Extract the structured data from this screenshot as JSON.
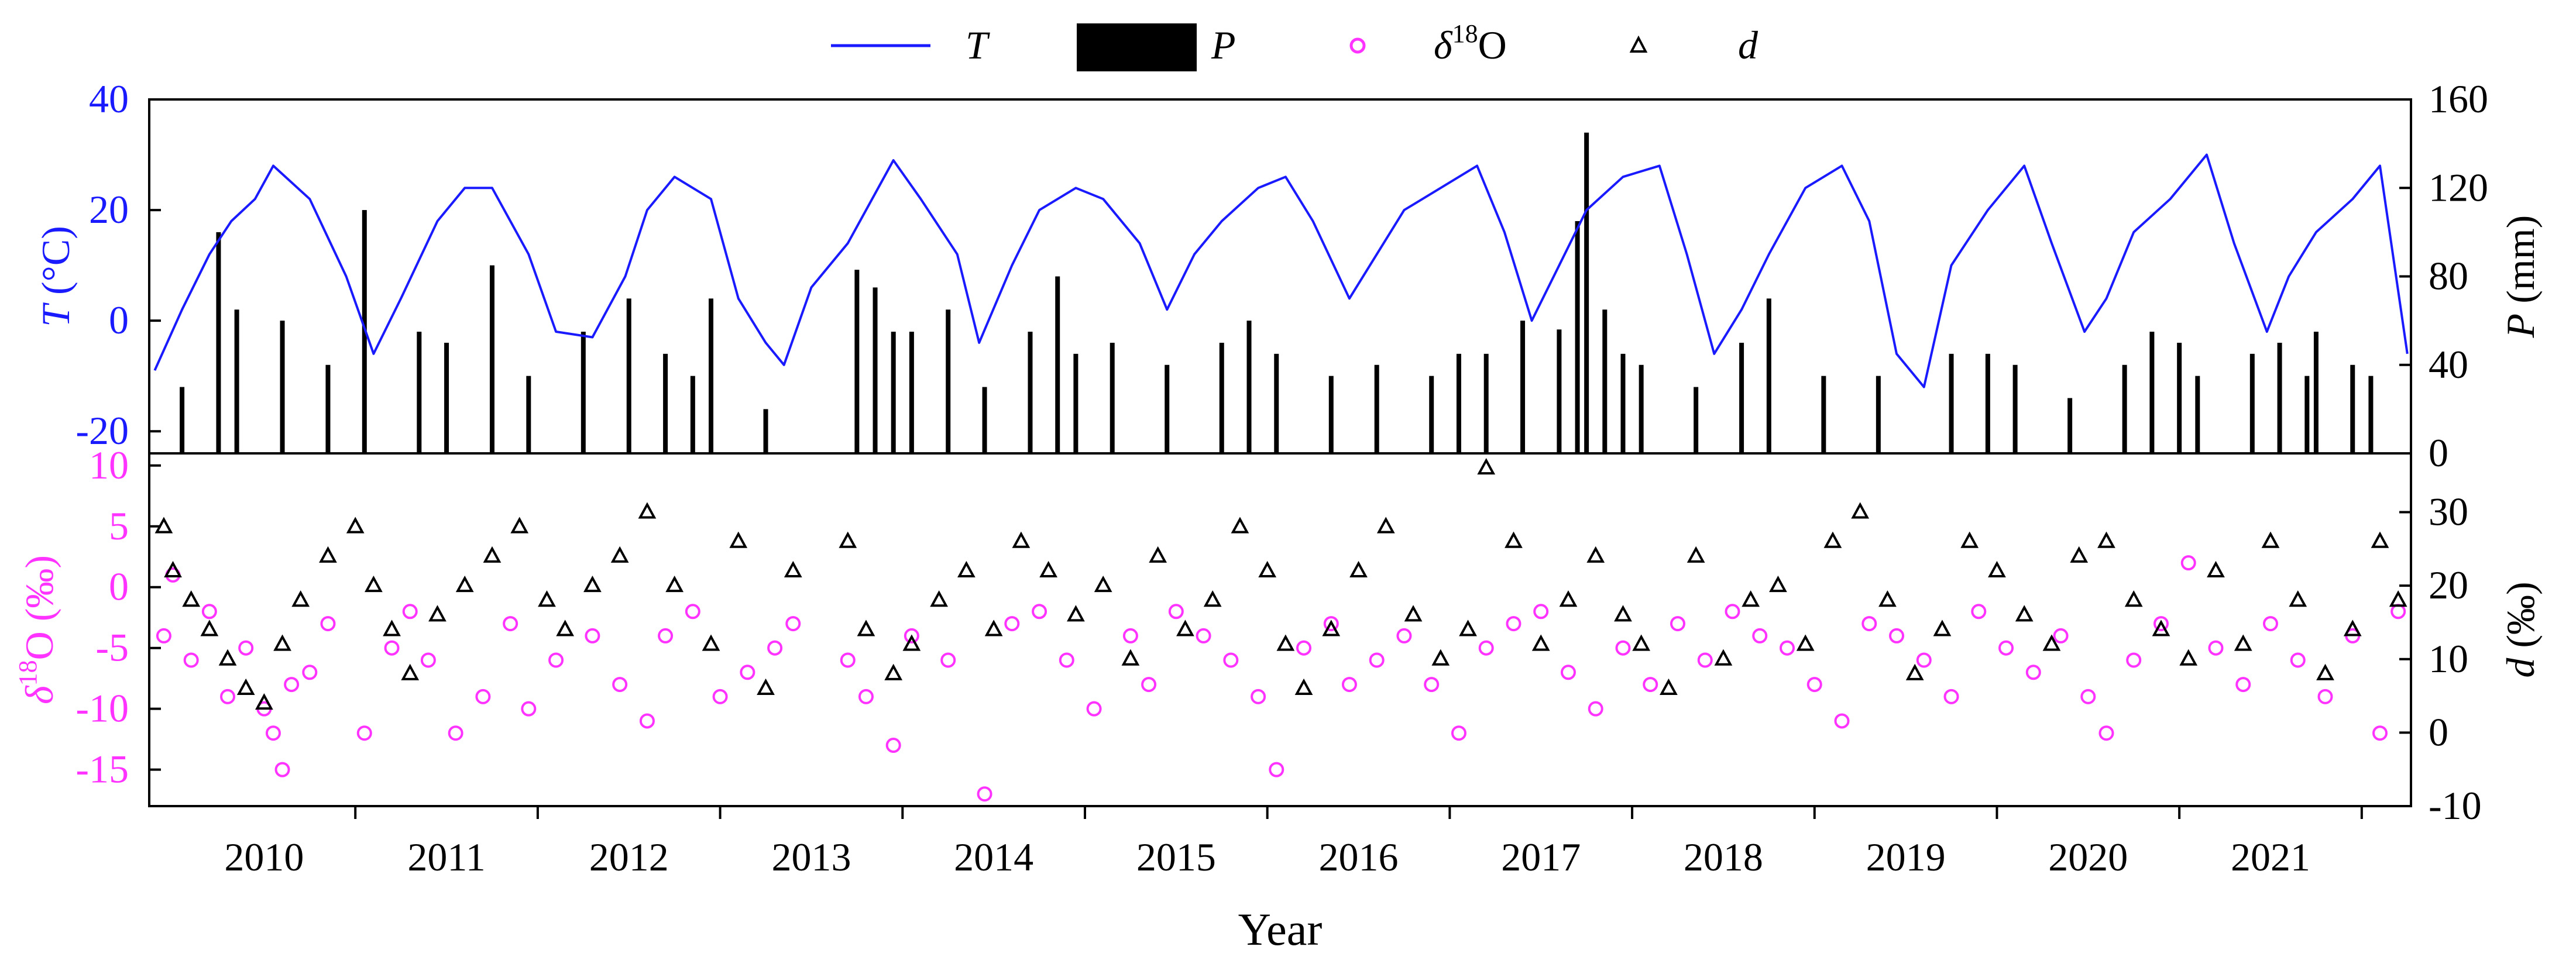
{
  "colors": {
    "temperature": "#1a1aff",
    "precipitation": "#000000",
    "d18o": "#ff33ff",
    "dexcess": "#000000",
    "axis": "#000000"
  },
  "legend": {
    "items": [
      {
        "key": "T",
        "label": "T",
        "marker": "line"
      },
      {
        "key": "P",
        "label": "P",
        "marker": "bar"
      },
      {
        "key": "d18O",
        "label_prefix": "δ",
        "label_sup": "18",
        "label_suffix": "O",
        "marker": "circle"
      },
      {
        "key": "d",
        "label": "d",
        "marker": "triangle"
      }
    ]
  },
  "chart_data": [
    {
      "panel": "top",
      "type": "line+bar",
      "x_range": [
        2009.37,
        2021.77
      ],
      "left_axis": {
        "label_var": "T",
        "label_unit": " (°C)",
        "ylim": [
          -24,
          40
        ],
        "ticks": [
          -20,
          0,
          20,
          40
        ]
      },
      "right_axis": {
        "label_var": "P",
        "label_unit": " (mm)",
        "ylim": [
          0,
          160
        ],
        "ticks": [
          0,
          40,
          80,
          120,
          160
        ]
      },
      "series": [
        {
          "name": "T",
          "type": "line",
          "description": "daily temperature, seasonal cycle",
          "x": [
            2009.4,
            2009.55,
            2009.7,
            2009.82,
            2009.95,
            2010.05,
            2010.25,
            2010.45,
            2010.6,
            2010.75,
            2010.95,
            2011.1,
            2011.25,
            2011.45,
            2011.6,
            2011.8,
            2011.98,
            2012.1,
            2012.25,
            2012.45,
            2012.6,
            2012.75,
            2012.85,
            2013.0,
            2013.2,
            2013.45,
            2013.6,
            2013.8,
            2013.92,
            2014.1,
            2014.25,
            2014.45,
            2014.6,
            2014.8,
            2014.95,
            2015.1,
            2015.25,
            2015.45,
            2015.6,
            2015.75,
            2015.95,
            2016.1,
            2016.25,
            2016.45,
            2016.65,
            2016.8,
            2016.95,
            2017.1,
            2017.25,
            2017.45,
            2017.65,
            2017.8,
            2017.95,
            2018.1,
            2018.25,
            2018.45,
            2018.65,
            2018.8,
            2018.95,
            2019.1,
            2019.25,
            2019.45,
            2019.65,
            2019.8,
            2019.98,
            2020.1,
            2020.25,
            2020.45,
            2020.65,
            2020.8,
            2020.98,
            2021.1,
            2021.25,
            2021.45,
            2021.6,
            2021.75
          ],
          "values": [
            -9,
            2,
            12,
            18,
            22,
            28,
            22,
            8,
            -6,
            4,
            18,
            24,
            24,
            12,
            -2,
            -3,
            8,
            20,
            26,
            22,
            4,
            -4,
            -8,
            6,
            14,
            29,
            22,
            12,
            -4,
            10,
            20,
            24,
            22,
            14,
            2,
            12,
            18,
            24,
            26,
            18,
            4,
            12,
            20,
            24,
            28,
            16,
            0,
            10,
            20,
            26,
            28,
            12,
            -6,
            2,
            12,
            24,
            28,
            18,
            -6,
            -12,
            10,
            20,
            28,
            14,
            -2,
            4,
            16,
            22,
            30,
            14,
            -2,
            8,
            16,
            22,
            28,
            -6
          ]
        },
        {
          "name": "P",
          "type": "bar",
          "description": "daily precipitation; notable spikes",
          "x": [
            2009.55,
            2009.75,
            2009.85,
            2010.1,
            2010.35,
            2010.55,
            2010.85,
            2011.0,
            2011.25,
            2011.45,
            2011.75,
            2012.0,
            2012.2,
            2012.35,
            2012.45,
            2012.75,
            2013.25,
            2013.35,
            2013.45,
            2013.55,
            2013.75,
            2013.95,
            2014.2,
            2014.35,
            2014.45,
            2014.65,
            2014.95,
            2015.25,
            2015.4,
            2015.55,
            2015.85,
            2016.1,
            2016.4,
            2016.55,
            2016.7,
            2016.9,
            2017.1,
            2017.2,
            2017.25,
            2017.35,
            2017.45,
            2017.55,
            2017.85,
            2018.1,
            2018.25,
            2018.55,
            2018.85,
            2019.25,
            2019.45,
            2019.6,
            2019.9,
            2020.2,
            2020.35,
            2020.5,
            2020.6,
            2020.9,
            2021.05,
            2021.2,
            2021.25,
            2021.45,
            2021.55
          ],
          "values": [
            30,
            100,
            65,
            60,
            40,
            110,
            55,
            50,
            85,
            35,
            55,
            70,
            45,
            35,
            70,
            20,
            83,
            75,
            55,
            55,
            65,
            30,
            55,
            80,
            45,
            50,
            40,
            50,
            60,
            45,
            35,
            40,
            35,
            45,
            45,
            60,
            56,
            105,
            145,
            65,
            45,
            40,
            30,
            50,
            70,
            35,
            35,
            45,
            45,
            40,
            25,
            40,
            55,
            50,
            35,
            45,
            50,
            35,
            55,
            40,
            35
          ]
        }
      ]
    },
    {
      "panel": "bottom",
      "type": "scatter",
      "x_range": [
        2009.37,
        2021.77
      ],
      "xlabel": "Year",
      "x_ticks": [
        2010,
        2011,
        2012,
        2013,
        2014,
        2015,
        2016,
        2017,
        2018,
        2019,
        2020,
        2021
      ],
      "x_minor_ticks": [
        2010.5,
        2011.5,
        2012.5,
        2013.5,
        2014.5,
        2015.5,
        2016.5,
        2017.5,
        2018.5,
        2019.5,
        2020.5,
        2021.5
      ],
      "left_axis": {
        "label_prefix": "δ",
        "label_sup": "18",
        "label_suffix": "O (‰)",
        "ylim": [
          -18,
          11
        ],
        "ticks": [
          -15,
          -10,
          -5,
          0,
          5,
          10
        ]
      },
      "right_axis": {
        "label_var": "d",
        "label_unit": " (‰)",
        "ylim": [
          -10,
          38
        ],
        "ticks": [
          -10,
          0,
          10,
          20,
          30
        ]
      },
      "series": [
        {
          "name": "d18O",
          "type": "scatter",
          "marker": "circle",
          "description": "daily precipitation δ18O, clusters of points",
          "x": [
            2009.45,
            2009.5,
            2009.6,
            2009.7,
            2009.8,
            2009.9,
            2010.0,
            2010.05,
            2010.1,
            2010.15,
            2010.25,
            2010.35,
            2010.55,
            2010.7,
            2010.8,
            2010.9,
            2011.05,
            2011.2,
            2011.35,
            2011.45,
            2011.6,
            2011.8,
            2011.95,
            2012.1,
            2012.2,
            2012.35,
            2012.5,
            2012.65,
            2012.8,
            2012.9,
            2013.2,
            2013.3,
            2013.45,
            2013.55,
            2013.75,
            2013.95,
            2014.1,
            2014.25,
            2014.4,
            2014.55,
            2014.75,
            2014.85,
            2015.0,
            2015.15,
            2015.3,
            2015.45,
            2015.55,
            2015.7,
            2015.85,
            2015.95,
            2016.1,
            2016.25,
            2016.4,
            2016.55,
            2016.7,
            2016.85,
            2017.0,
            2017.15,
            2017.3,
            2017.45,
            2017.6,
            2017.75,
            2017.9,
            2018.05,
            2018.2,
            2018.35,
            2018.5,
            2018.65,
            2018.8,
            2018.95,
            2019.1,
            2019.25,
            2019.4,
            2019.55,
            2019.7,
            2019.85,
            2020.0,
            2020.1,
            2020.25,
            2020.4,
            2020.55,
            2020.7,
            2020.85,
            2021.0,
            2021.15,
            2021.3,
            2021.45,
            2021.6,
            2021.7
          ],
          "values": [
            -4,
            1,
            -6,
            -2,
            -9,
            -5,
            -10,
            -12,
            -15,
            -8,
            -7,
            -3,
            -12,
            -5,
            -2,
            -6,
            -12,
            -9,
            -3,
            -10,
            -6,
            -4,
            -8,
            -11,
            -4,
            -2,
            -9,
            -7,
            -5,
            -3,
            -6,
            -9,
            -13,
            -4,
            -6,
            -17,
            -3,
            -2,
            -6,
            -10,
            -4,
            -8,
            -2,
            -4,
            -6,
            -9,
            -15,
            -5,
            -3,
            -8,
            -6,
            -4,
            -8,
            -12,
            -5,
            -3,
            -2,
            -7,
            -10,
            -5,
            -8,
            -3,
            -6,
            -2,
            -4,
            -5,
            -8,
            -11,
            -3,
            -4,
            -6,
            -9,
            -2,
            -5,
            -7,
            -4,
            -9,
            -12,
            -6,
            -3,
            2,
            -5,
            -8,
            -3,
            -6,
            -9,
            -4,
            -12,
            -2
          ]
        },
        {
          "name": "d",
          "type": "scatter",
          "marker": "triangle",
          "description": "daily deuterium excess",
          "x": [
            2009.45,
            2009.5,
            2009.6,
            2009.7,
            2009.8,
            2009.9,
            2010.0,
            2010.1,
            2010.2,
            2010.35,
            2010.5,
            2010.6,
            2010.7,
            2010.8,
            2010.95,
            2011.1,
            2011.25,
            2011.4,
            2011.55,
            2011.65,
            2011.8,
            2011.95,
            2012.1,
            2012.25,
            2012.45,
            2012.6,
            2012.75,
            2012.9,
            2013.2,
            2013.3,
            2013.45,
            2013.55,
            2013.7,
            2013.85,
            2014.0,
            2014.15,
            2014.3,
            2014.45,
            2014.6,
            2014.75,
            2014.9,
            2015.05,
            2015.2,
            2015.35,
            2015.5,
            2015.6,
            2015.7,
            2015.85,
            2016.0,
            2016.15,
            2016.3,
            2016.45,
            2016.6,
            2016.7,
            2016.85,
            2017.0,
            2017.15,
            2017.3,
            2017.45,
            2017.55,
            2017.7,
            2017.85,
            2018.0,
            2018.15,
            2018.3,
            2018.45,
            2018.6,
            2018.75,
            2018.9,
            2019.05,
            2019.2,
            2019.35,
            2019.5,
            2019.65,
            2019.8,
            2019.95,
            2020.1,
            2020.25,
            2020.4,
            2020.55,
            2020.7,
            2020.85,
            2021.0,
            2021.15,
            2021.3,
            2021.45,
            2021.6,
            2021.7
          ],
          "values": [
            28,
            22,
            18,
            14,
            10,
            6,
            4,
            12,
            18,
            24,
            28,
            20,
            14,
            8,
            16,
            20,
            24,
            28,
            18,
            14,
            20,
            24,
            30,
            20,
            12,
            26,
            6,
            22,
            26,
            14,
            8,
            12,
            18,
            22,
            14,
            26,
            22,
            16,
            20,
            10,
            24,
            14,
            18,
            28,
            22,
            12,
            6,
            14,
            22,
            28,
            16,
            10,
            14,
            36,
            26,
            12,
            18,
            24,
            16,
            12,
            6,
            24,
            10,
            18,
            20,
            12,
            26,
            30,
            18,
            8,
            14,
            26,
            22,
            16,
            12,
            24,
            26,
            18,
            14,
            10,
            22,
            12,
            26,
            18,
            8,
            14,
            26,
            18
          ]
        }
      ]
    }
  ]
}
